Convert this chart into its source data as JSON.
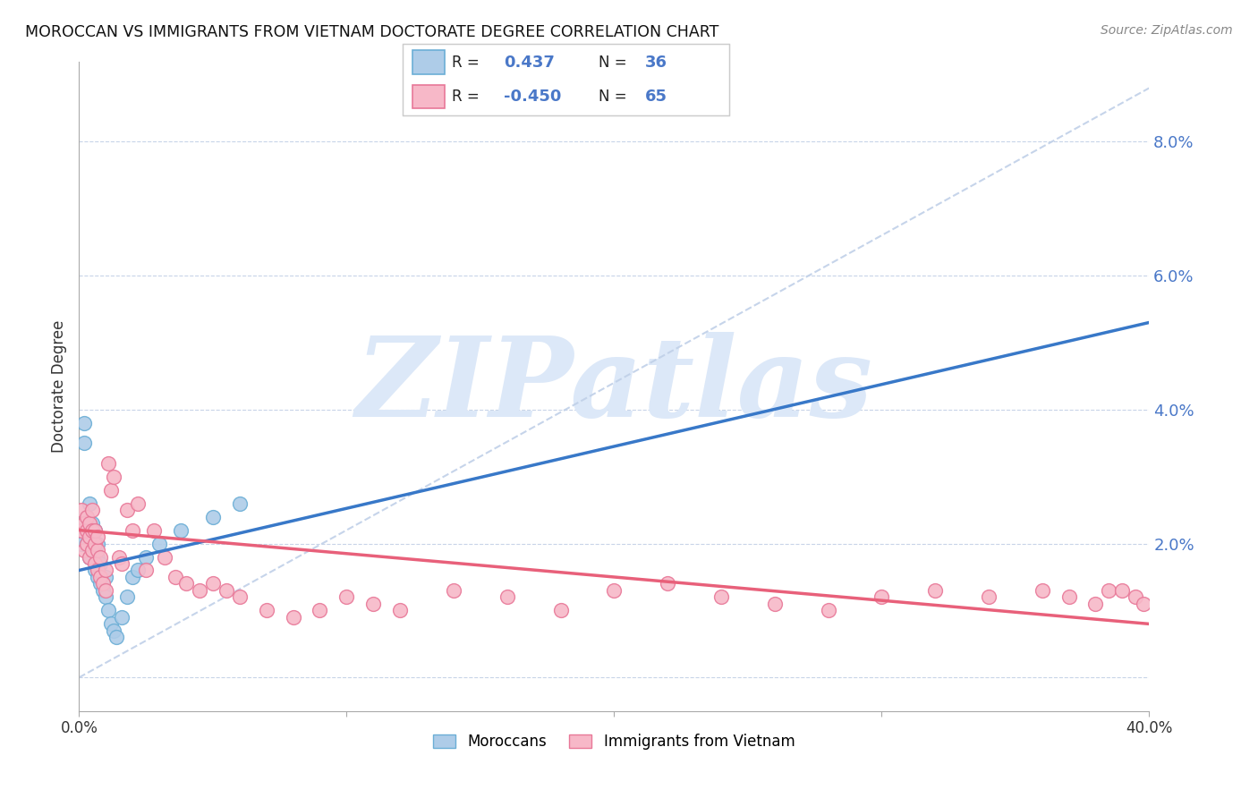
{
  "title": "MOROCCAN VS IMMIGRANTS FROM VIETNAM DOCTORATE DEGREE CORRELATION CHART",
  "source": "Source: ZipAtlas.com",
  "ylabel": "Doctorate Degree",
  "xlim": [
    0.0,
    0.4
  ],
  "ylim": [
    -0.005,
    0.092
  ],
  "y_ticks": [
    0.0,
    0.02,
    0.04,
    0.06,
    0.08
  ],
  "y_tick_labels": [
    "",
    "2.0%",
    "4.0%",
    "6.0%",
    "8.0%"
  ],
  "x_ticks": [
    0.0,
    0.1,
    0.2,
    0.3,
    0.4
  ],
  "x_tick_labels": [
    "0.0%",
    "",
    "",
    "",
    "40.0%"
  ],
  "legend_moroccan_label": "Moroccans",
  "legend_vietnam_label": "Immigrants from Vietnam",
  "r_moroccan": "0.437",
  "n_moroccan": "36",
  "r_vietnam": "-0.450",
  "n_vietnam": "65",
  "moroccan_color": "#aecce8",
  "moroccan_edge_color": "#6baed6",
  "vietnam_color": "#f7b8c8",
  "vietnam_edge_color": "#e87898",
  "trend_moroccan_color": "#3878c8",
  "trend_vietnam_color": "#e8607a",
  "diag_color": "#c0d0e8",
  "watermark_color": "#dce8f8",
  "watermark_text": "ZIPatlas",
  "moroccan_x": [
    0.001,
    0.002,
    0.002,
    0.003,
    0.003,
    0.003,
    0.004,
    0.004,
    0.004,
    0.005,
    0.005,
    0.005,
    0.006,
    0.006,
    0.006,
    0.007,
    0.007,
    0.007,
    0.008,
    0.008,
    0.009,
    0.01,
    0.01,
    0.011,
    0.012,
    0.013,
    0.014,
    0.016,
    0.018,
    0.02,
    0.022,
    0.025,
    0.03,
    0.038,
    0.05,
    0.06
  ],
  "moroccan_y": [
    0.02,
    0.035,
    0.038,
    0.02,
    0.022,
    0.024,
    0.018,
    0.022,
    0.026,
    0.019,
    0.021,
    0.023,
    0.016,
    0.019,
    0.022,
    0.015,
    0.018,
    0.02,
    0.014,
    0.017,
    0.013,
    0.012,
    0.015,
    0.01,
    0.008,
    0.007,
    0.006,
    0.009,
    0.012,
    0.015,
    0.016,
    0.018,
    0.02,
    0.022,
    0.024,
    0.026
  ],
  "vietnam_x": [
    0.001,
    0.001,
    0.002,
    0.002,
    0.003,
    0.003,
    0.003,
    0.004,
    0.004,
    0.004,
    0.005,
    0.005,
    0.005,
    0.006,
    0.006,
    0.006,
    0.007,
    0.007,
    0.007,
    0.008,
    0.008,
    0.009,
    0.01,
    0.01,
    0.011,
    0.012,
    0.013,
    0.015,
    0.016,
    0.018,
    0.02,
    0.022,
    0.025,
    0.028,
    0.032,
    0.036,
    0.04,
    0.045,
    0.05,
    0.055,
    0.06,
    0.07,
    0.08,
    0.09,
    0.1,
    0.11,
    0.12,
    0.14,
    0.16,
    0.18,
    0.2,
    0.22,
    0.24,
    0.26,
    0.28,
    0.3,
    0.32,
    0.34,
    0.36,
    0.37,
    0.38,
    0.385,
    0.39,
    0.395,
    0.398
  ],
  "vietnam_y": [
    0.022,
    0.025,
    0.019,
    0.023,
    0.02,
    0.022,
    0.024,
    0.018,
    0.021,
    0.023,
    0.019,
    0.022,
    0.025,
    0.017,
    0.02,
    0.022,
    0.016,
    0.019,
    0.021,
    0.015,
    0.018,
    0.014,
    0.013,
    0.016,
    0.032,
    0.028,
    0.03,
    0.018,
    0.017,
    0.025,
    0.022,
    0.026,
    0.016,
    0.022,
    0.018,
    0.015,
    0.014,
    0.013,
    0.014,
    0.013,
    0.012,
    0.01,
    0.009,
    0.01,
    0.012,
    0.011,
    0.01,
    0.013,
    0.012,
    0.01,
    0.013,
    0.014,
    0.012,
    0.011,
    0.01,
    0.012,
    0.013,
    0.012,
    0.013,
    0.012,
    0.011,
    0.013,
    0.013,
    0.012,
    0.011
  ],
  "blue_trend_x0": 0.0,
  "blue_trend_y0": 0.016,
  "blue_trend_x1": 0.4,
  "blue_trend_y1": 0.053,
  "pink_trend_x0": 0.0,
  "pink_trend_y0": 0.022,
  "pink_trend_x1": 0.4,
  "pink_trend_y1": 0.008
}
